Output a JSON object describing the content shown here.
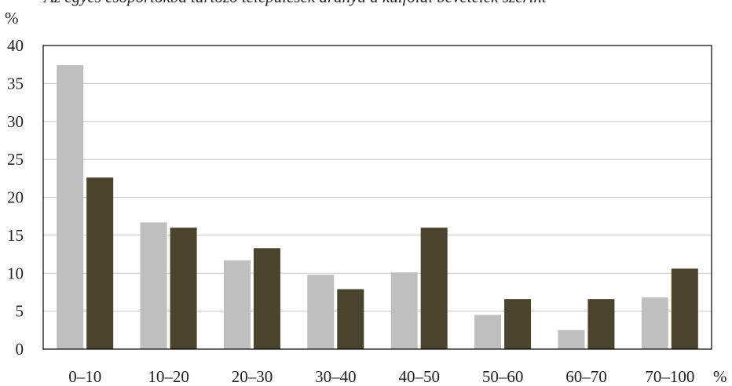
{
  "chart_data": {
    "type": "bar",
    "title": "Az egyes csoportokba tartozó települések aránya a külföldi bevételek szerint",
    "ylabel": "%",
    "xlabel": "%",
    "categories": [
      "0–10",
      "10–20",
      "20–30",
      "30–40",
      "40–50",
      "50–60",
      "60–70",
      "70–100"
    ],
    "ylim": [
      0,
      40
    ],
    "yticks": [
      0,
      5,
      10,
      15,
      20,
      25,
      30,
      35,
      40
    ],
    "grid": true,
    "legend": "none",
    "series": [
      {
        "color": "#bfbfbf",
        "values": [
          37.4,
          16.7,
          11.7,
          9.8,
          10.1,
          4.5,
          2.5,
          6.8
        ]
      },
      {
        "color": "#4a432d",
        "values": [
          22.6,
          16.0,
          13.3,
          7.9,
          16.0,
          6.6,
          6.6,
          10.6
        ]
      }
    ]
  }
}
